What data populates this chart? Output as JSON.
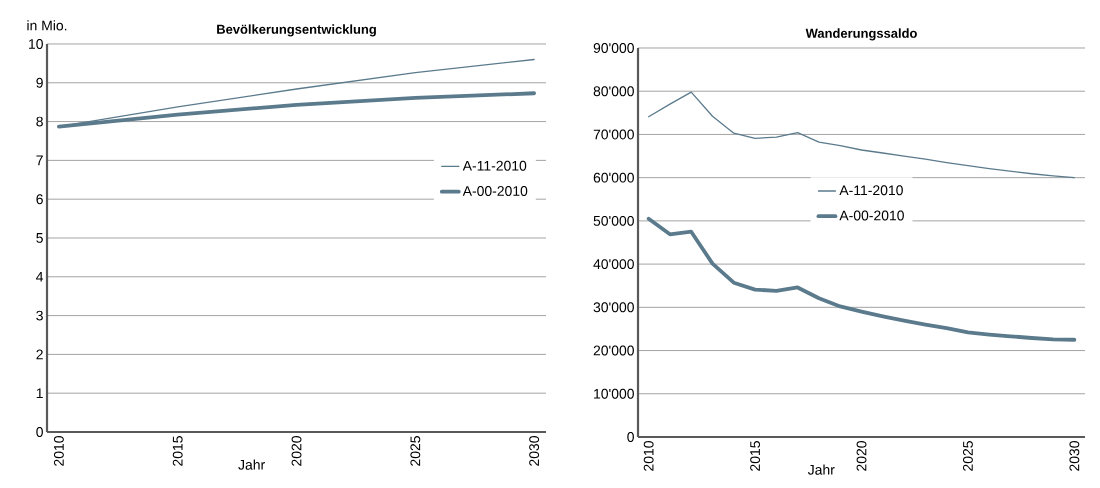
{
  "chart_data": [
    {
      "type": "line",
      "title": "Bevölkerungsentwicklung",
      "ylabel": "in Mio.",
      "xlabel": "Jahr",
      "x": [
        2010,
        2015,
        2020,
        2025,
        2030
      ],
      "series": [
        {
          "name": "A-11-2010",
          "color": "#5b7b8d",
          "values": [
            7.87,
            8.38,
            8.84,
            9.26,
            9.6
          ]
        },
        {
          "name": "A-00-2010",
          "color": "#5b7b8d",
          "values": [
            7.87,
            8.18,
            8.43,
            8.61,
            8.73
          ]
        }
      ],
      "xlim": [
        2009.5,
        2030.5
      ],
      "xticks": [
        2010,
        2015,
        2020,
        2025,
        2030
      ],
      "ylim": [
        0,
        10
      ],
      "yticks": [
        0,
        1,
        2,
        3,
        4,
        5,
        6,
        7,
        8,
        9,
        10
      ],
      "grid": "y",
      "legend": "top right"
    },
    {
      "type": "line",
      "title": "Wanderungssaldo",
      "xlabel": "Jahr",
      "x": [
        2010,
        2011,
        2012,
        2013,
        2014,
        2015,
        2016,
        2017,
        2018,
        2019,
        2020,
        2021,
        2022,
        2023,
        2024,
        2025,
        2026,
        2027,
        2028,
        2029,
        2030
      ],
      "series": [
        {
          "name": "A-11-2010",
          "color": "#5b7b8d",
          "values": [
            74100,
            77000,
            79800,
            74200,
            70300,
            69100,
            69400,
            70400,
            68200,
            67400,
            66400,
            65700,
            65000,
            64300,
            63500,
            62800,
            62100,
            61500,
            60900,
            60400,
            60000
          ]
        },
        {
          "name": "A-00-2010",
          "color": "#5b7b8d",
          "values": [
            50500,
            46900,
            47500,
            40100,
            35700,
            34100,
            33800,
            34600,
            32100,
            30200,
            29000,
            27900,
            26900,
            26000,
            25200,
            24200,
            23700,
            23300,
            22900,
            22600,
            22500
          ]
        }
      ],
      "xlim": [
        2009.5,
        2030.5
      ],
      "xticks": [
        2010,
        2015,
        2020,
        2025,
        2030
      ],
      "ylim": [
        0,
        90000
      ],
      "yticks": [
        0,
        {
          "value": 10000,
          "label": "10'000"
        },
        {
          "value": 20000,
          "label": "20'000"
        },
        {
          "value": 30000,
          "label": "30'000"
        },
        {
          "value": 40000,
          "label": "40'000"
        },
        {
          "value": 50000,
          "label": "50'000"
        },
        {
          "value": 60000,
          "label": "60'000"
        },
        {
          "value": 70000,
          "label": "70'000"
        },
        {
          "value": 80000,
          "label": "80'000"
        },
        {
          "value": 90000,
          "label": "90'000"
        }
      ],
      "grid": "y",
      "legend": "center"
    }
  ]
}
